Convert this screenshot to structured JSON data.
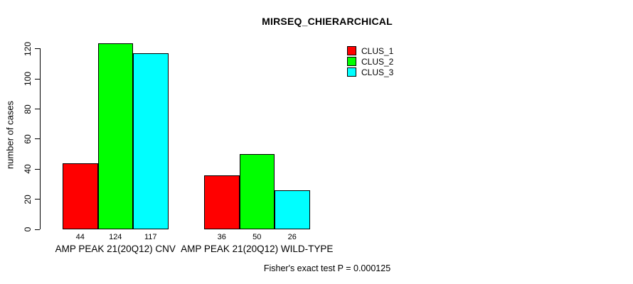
{
  "chart_data": {
    "type": "bar",
    "title": "MIRSEQ_CHIERARCHICAL",
    "ylabel": "number of cases",
    "xlabel": "",
    "categories": [
      "AMP PEAK 21(20Q12) CNV",
      "AMP PEAK 21(20Q12) WILD-TYPE"
    ],
    "series": [
      {
        "name": "CLUS_1",
        "color": "#ff0000",
        "values": [
          44,
          36
        ]
      },
      {
        "name": "CLUS_2",
        "color": "#00ff00",
        "values": [
          124,
          50
        ]
      },
      {
        "name": "CLUS_3",
        "color": "#00ffff",
        "values": [
          117,
          26
        ]
      }
    ],
    "yticks": [
      0,
      20,
      40,
      60,
      80,
      100,
      120
    ],
    "ylim": [
      0,
      127
    ],
    "grid": false,
    "legend_position": "top-right",
    "bar_value_labels_shown": true,
    "annotation": "Fisher's exact test P = 0.000125"
  }
}
